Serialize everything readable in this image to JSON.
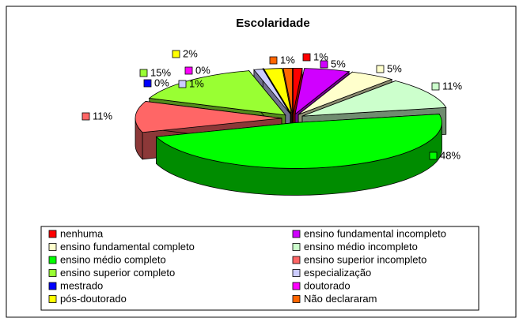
{
  "chart_data": {
    "type": "pie",
    "title": "Escolaridade",
    "categories": [
      "nenhuma",
      "ensino fundamental incompleto",
      "ensino fundamental completo",
      "ensino médio incompleto",
      "ensino médio completo",
      "ensino superior incompleto",
      "ensino superior completo",
      "especialização",
      "mestrado",
      "doutorado",
      "pós-doutorado",
      "Não declararam"
    ],
    "values": [
      1,
      5,
      5,
      11,
      48,
      11,
      15,
      1,
      0,
      0,
      2,
      1
    ],
    "value_labels": [
      "1%",
      "5%",
      "5%",
      "11%",
      "48%",
      "11%",
      "15%",
      "1%",
      "0%",
      "0%",
      "2%",
      "1%"
    ],
    "colors": [
      "#ff0000",
      "#d000ff",
      "#ffffcc",
      "#ccffcc",
      "#00ff00",
      "#ff6666",
      "#99ff33",
      "#ccccff",
      "#0000ff",
      "#ff00ff",
      "#ffff00",
      "#ff6600"
    ],
    "legend": "bottom"
  }
}
